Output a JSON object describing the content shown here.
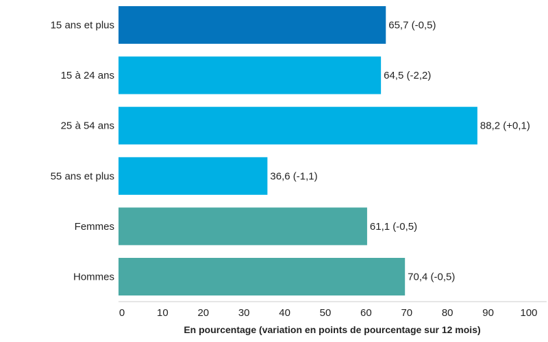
{
  "chart_data": {
    "type": "bar",
    "orientation": "horizontal",
    "title": "",
    "xlabel": "En pourcentage (variation en points de pourcentage sur 12 mois)",
    "ylabel": "",
    "xlim": [
      0,
      100
    ],
    "x_ticks": [
      0,
      10,
      20,
      30,
      40,
      50,
      60,
      70,
      80,
      90,
      100
    ],
    "grid": false,
    "legend": "none",
    "categories": [
      "15 ans et plus",
      "15 à 24 ans",
      "25 à 54 ans",
      "55 ans et plus",
      "Femmes",
      "Hommes"
    ],
    "values": [
      65.7,
      64.5,
      88.2,
      36.6,
      61.1,
      70.4
    ],
    "data_labels": [
      "65,7 (-0,5)",
      "64,5 (-2,2)",
      "88,2 (+0,1)",
      "36,6 (-1,1)",
      "61,1 (-0,5)",
      "70,4 (-0,5)"
    ],
    "bar_colors": [
      "#0474BC",
      "#00B0E4",
      "#00B0E4",
      "#00B0E4",
      "#4AA9A4",
      "#4AA9A4"
    ],
    "axis_color": "#cccccc"
  }
}
